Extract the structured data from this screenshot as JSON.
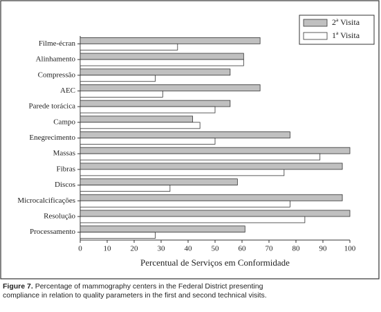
{
  "chart_data": {
    "type": "bar",
    "orientation": "horizontal",
    "categories": [
      "Filme-écran",
      "Alinhamento",
      "Compressão",
      "AEC",
      "Parede torácica",
      "Campo",
      "Enegrecimento",
      "Massas",
      "Fibras",
      "Discos",
      "Microcalcificações",
      "Resolução",
      "Processamento"
    ],
    "series": [
      {
        "name": "2ª Visita",
        "color": "#c0c0c0",
        "values": [
          66.7,
          60.6,
          55.6,
          66.7,
          55.6,
          41.7,
          77.8,
          100,
          97.2,
          58.3,
          97.2,
          100,
          61.1
        ]
      },
      {
        "name": "1ª Visita",
        "color": "#ffffff",
        "values": [
          36.1,
          60.6,
          27.8,
          30.6,
          50,
          44.4,
          50,
          88.9,
          75.6,
          33.3,
          77.8,
          83.3,
          27.8
        ]
      }
    ],
    "xlabel": "Percentual de Serviços em Conformidade",
    "xlim": [
      0,
      100
    ],
    "xticks": [
      0,
      10,
      20,
      30,
      40,
      50,
      60,
      70,
      80,
      90,
      100
    ],
    "legend": "top-right"
  },
  "caption": {
    "label": "Figure 7.",
    "text": "Percentage of mammography centers in the Federal District presenting compliance in relation to quality parameters in the first and second technical visits."
  }
}
